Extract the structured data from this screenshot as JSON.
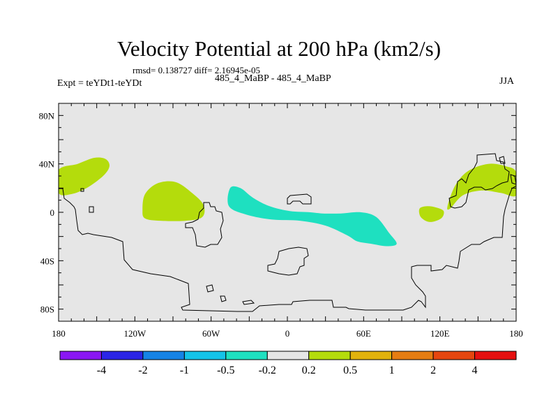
{
  "title": "Velocity Potential at 200 hPa (km2/s)",
  "stats_text": "rmsd= 0.138727 diff= 2.16945e-05",
  "expt_label": "Expt = teYDt1-teYDt",
  "center_label": "485_4_MaBP - 485_4_MaBP",
  "season": "JJA",
  "chart_data": {
    "type": "contour-map",
    "title": "Velocity Potential at 200 hPa (km2/s)",
    "xlim": [
      -180,
      180
    ],
    "ylim": [
      -90,
      90
    ],
    "x_ticks": [
      {
        "value": -180,
        "label": "180"
      },
      {
        "value": -120,
        "label": "120W"
      },
      {
        "value": -60,
        "label": "60W"
      },
      {
        "value": 0,
        "label": "0"
      },
      {
        "value": 60,
        "label": "60E"
      },
      {
        "value": 120,
        "label": "120E"
      },
      {
        "value": 180,
        "label": "180"
      }
    ],
    "y_ticks": [
      {
        "value": 80,
        "label": "80N"
      },
      {
        "value": 40,
        "label": "40N"
      },
      {
        "value": 0,
        "label": "0"
      },
      {
        "value": -40,
        "label": "40S"
      },
      {
        "value": -80,
        "label": "80S"
      }
    ],
    "background_color": "#e6e6e6",
    "colorbar": {
      "levels": [
        "-4",
        "-2",
        "-1",
        "-0.5",
        "-0.2",
        "0.2",
        "0.5",
        "1",
        "2",
        "4"
      ],
      "colors": [
        "#8a16f2",
        "#2b25e6",
        "#1583e6",
        "#14c3e8",
        "#1ee0c0",
        "#e6e6e6",
        "#b4dc0c",
        "#e1b20c",
        "#e67d12",
        "#e6460f",
        "#e61010"
      ]
    },
    "regions": [
      {
        "name": "north-pacific-positive",
        "range": "0.2 to 0.5",
        "color": "#b4dc0c",
        "points": [
          [
            -180,
            35
          ],
          [
            -165,
            40
          ],
          [
            -152,
            45
          ],
          [
            -143,
            44
          ],
          [
            -140,
            38
          ],
          [
            -145,
            30
          ],
          [
            -158,
            20
          ],
          [
            -170,
            15
          ],
          [
            -180,
            16
          ]
        ]
      },
      {
        "name": "east-pacific-positive",
        "range": "0.2 to 0.5",
        "color": "#b4dc0c",
        "points": [
          [
            -114,
            2
          ],
          [
            -112,
            15
          ],
          [
            -102,
            24
          ],
          [
            -88,
            25
          ],
          [
            -75,
            16
          ],
          [
            -66,
            6
          ],
          [
            -67,
            -4
          ],
          [
            -80,
            -7
          ],
          [
            -100,
            -7
          ],
          [
            -112,
            -5
          ]
        ]
      },
      {
        "name": "indian-ocean-small-positive",
        "range": "0.2 to 0.5",
        "color": "#b4dc0c",
        "points": [
          [
            104,
            3
          ],
          [
            110,
            5
          ],
          [
            117,
            4
          ],
          [
            123,
            1
          ],
          [
            121,
            -5
          ],
          [
            112,
            -8
          ],
          [
            105,
            -4
          ]
        ]
      },
      {
        "name": "west-pacific-positive",
        "range": "0.2 to 0.5",
        "color": "#b4dc0c",
        "points": [
          [
            126,
            5
          ],
          [
            132,
            22
          ],
          [
            142,
            34
          ],
          [
            158,
            40
          ],
          [
            172,
            38
          ],
          [
            180,
            33
          ],
          [
            180,
            14
          ],
          [
            168,
            16
          ],
          [
            153,
            18
          ],
          [
            138,
            14
          ],
          [
            128,
            3
          ]
        ]
      },
      {
        "name": "atlantic-africa-negative",
        "range": "-0.5 to -0.2",
        "color": "#1ee0c0",
        "points": [
          [
            -45,
            20
          ],
          [
            -37,
            20
          ],
          [
            -27,
            12
          ],
          [
            -14,
            5
          ],
          [
            2,
            1
          ],
          [
            18,
            0
          ],
          [
            28,
            -1
          ],
          [
            42,
            -1
          ],
          [
            58,
            0
          ],
          [
            70,
            -4
          ],
          [
            80,
            -17
          ],
          [
            86,
            -26
          ],
          [
            78,
            -28
          ],
          [
            66,
            -26
          ],
          [
            55,
            -24
          ],
          [
            47,
            -19
          ],
          [
            30,
            -11
          ],
          [
            10,
            -7
          ],
          [
            -12,
            -6
          ],
          [
            -32,
            -2
          ],
          [
            -46,
            5
          ]
        ]
      }
    ]
  }
}
